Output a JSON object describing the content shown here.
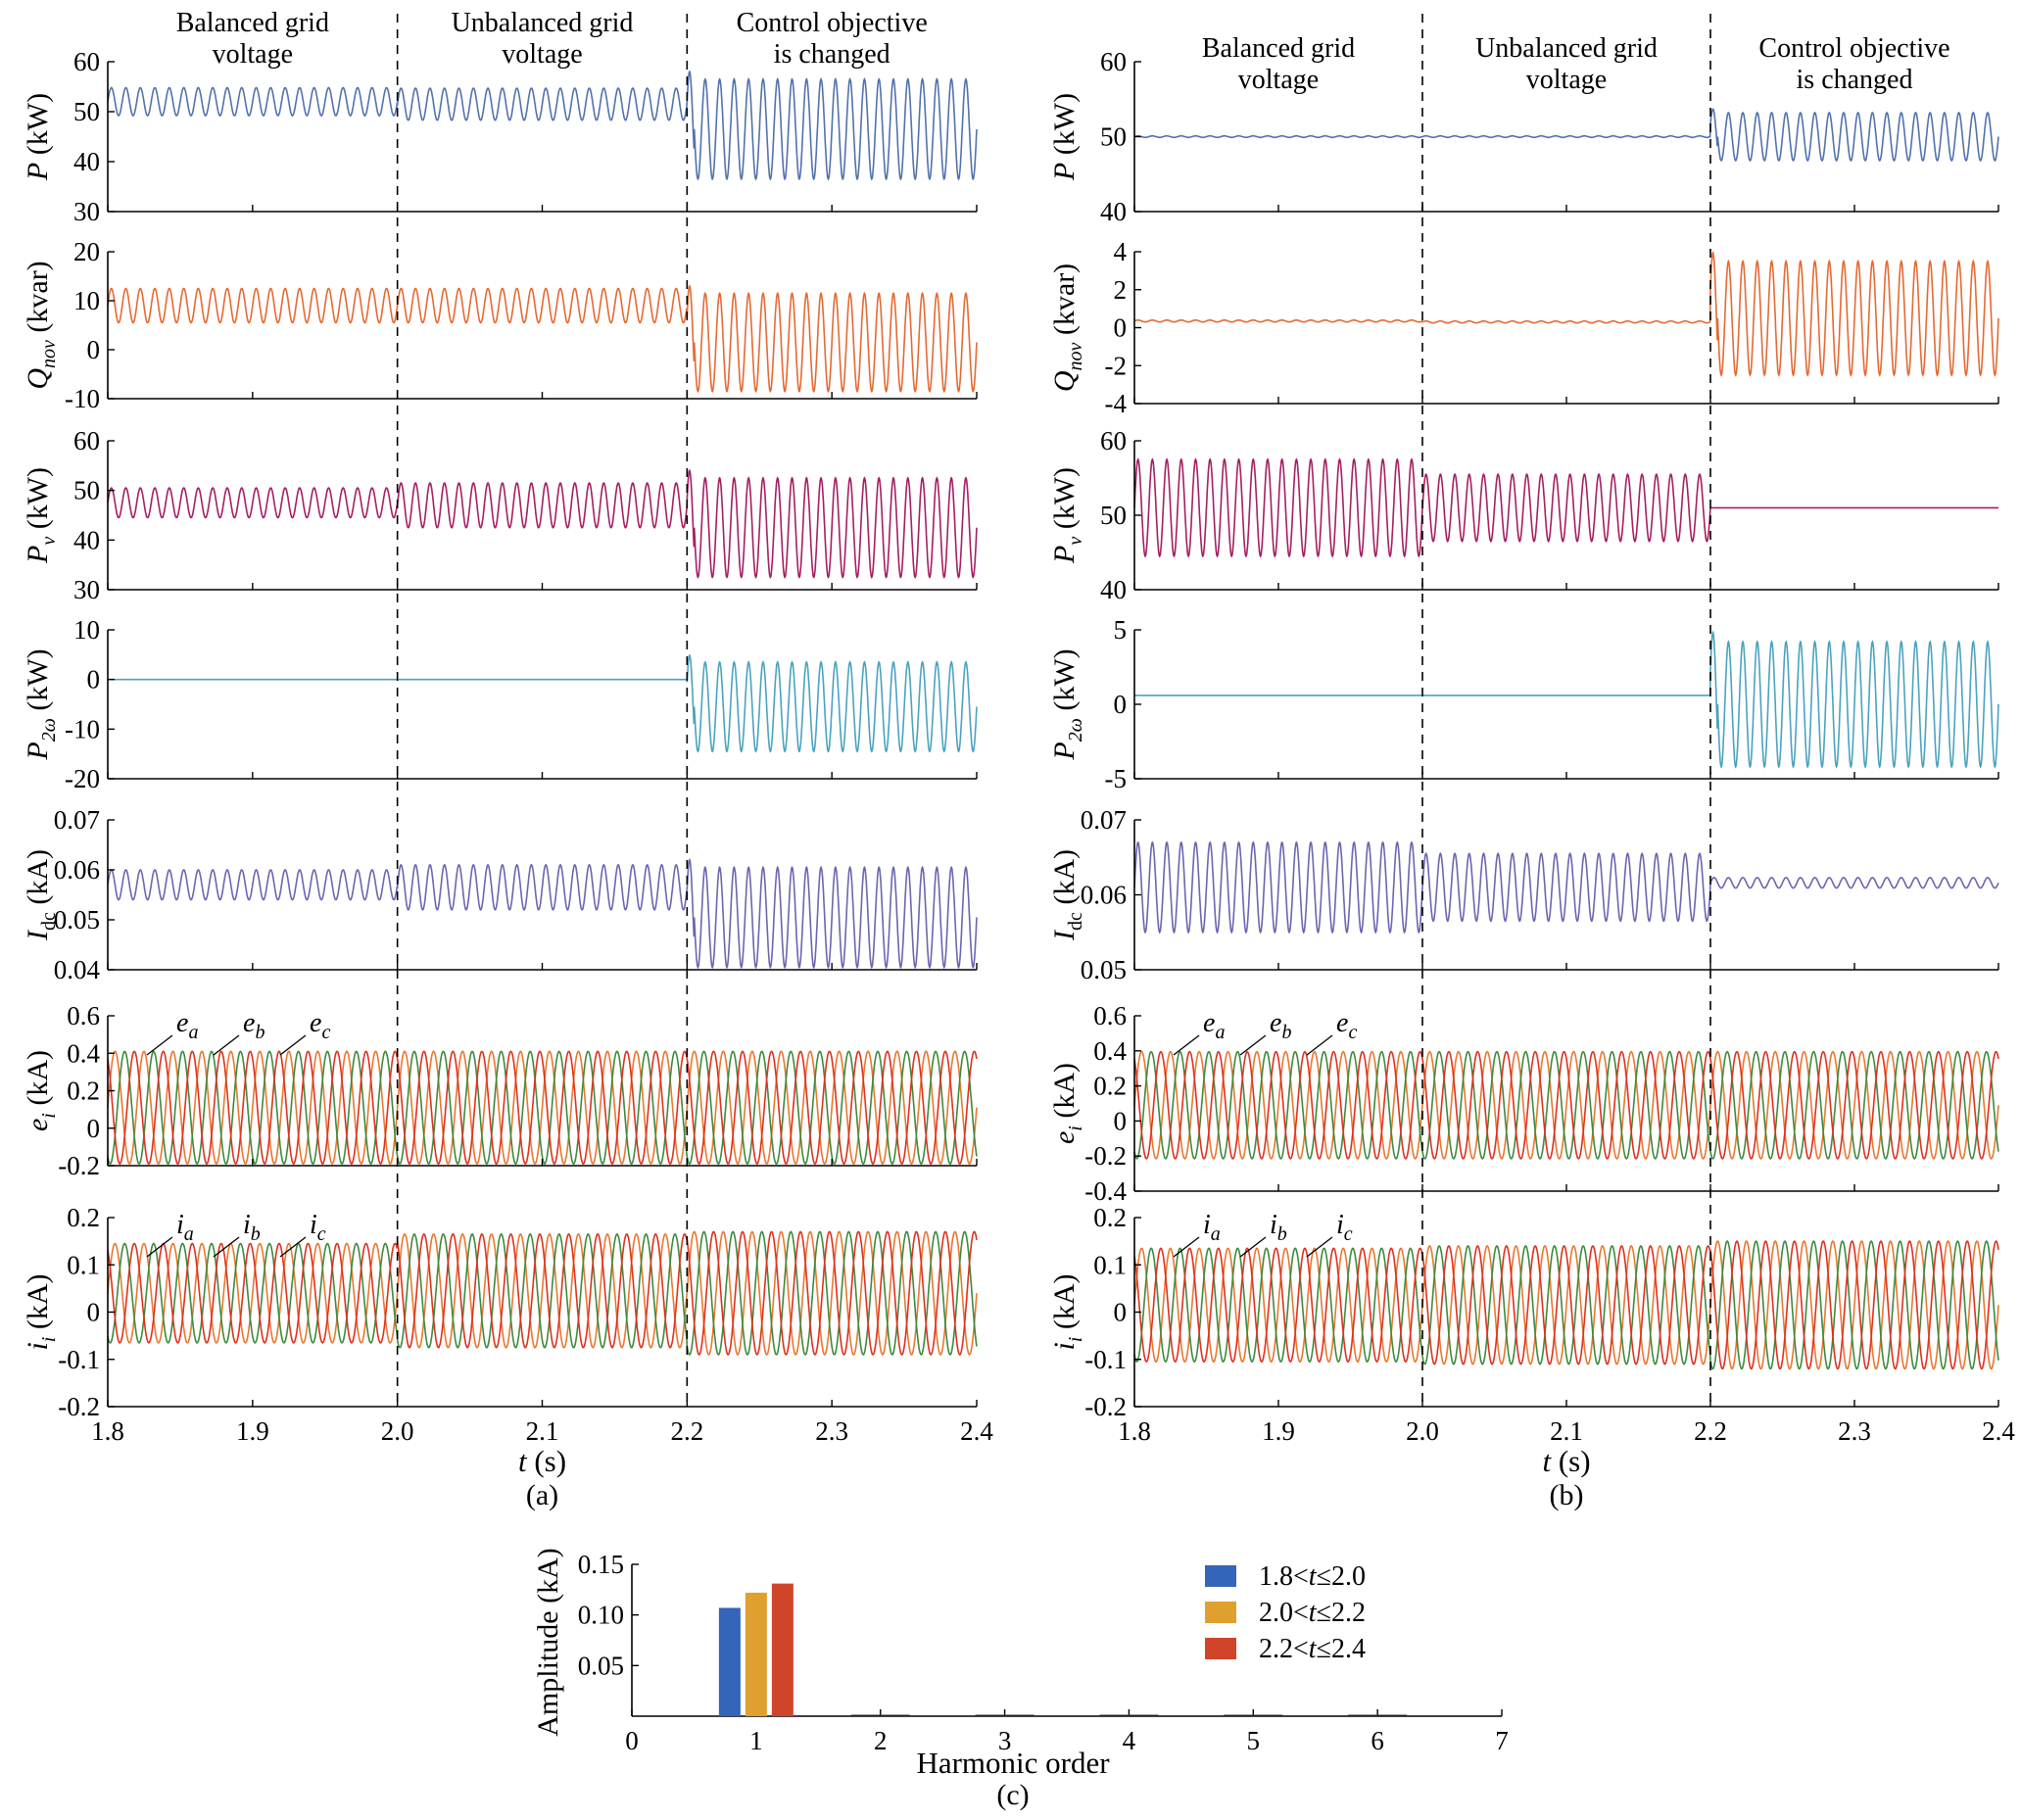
{
  "panels": [
    {
      "caption": "(a)",
      "annotations": [
        {
          "lines": [
            "Balanced grid",
            "voltage"
          ]
        },
        {
          "lines": [
            "Unbalanced grid",
            "voltage"
          ]
        },
        {
          "lines": [
            "Control objective",
            "is changed"
          ]
        }
      ],
      "xlabel": {
        "var": "t",
        "unit": " (s)"
      },
      "x_ticks": [
        "1.8",
        "1.9",
        "2.0",
        "2.1",
        "2.2",
        "2.3",
        "2.4"
      ],
      "phase_labels_e": [
        {
          "base": "e",
          "sub": "a"
        },
        {
          "base": "e",
          "sub": "b"
        },
        {
          "base": "e",
          "sub": "c"
        }
      ],
      "phase_labels_i": [
        {
          "base": "i",
          "sub": "a"
        },
        {
          "base": "i",
          "sub": "b"
        },
        {
          "base": "i",
          "sub": "c"
        }
      ],
      "rows": [
        {
          "ylabel": {
            "sym": "P",
            "sub": "",
            "unit": " (kW)"
          },
          "ylim": [
            30,
            60
          ],
          "ticks": [
            "30",
            "40",
            "50",
            "60"
          ]
        },
        {
          "ylabel": {
            "sym": "Q",
            "sub": "nov",
            "unit": " (kvar)"
          },
          "ylim": [
            -10,
            20
          ],
          "ticks": [
            "-10",
            "0",
            "10",
            "20"
          ]
        },
        {
          "ylabel": {
            "sym": "P",
            "sub": "v",
            "unit": " (kW)"
          },
          "ylim": [
            30,
            60
          ],
          "ticks": [
            "30",
            "40",
            "50",
            "60"
          ]
        },
        {
          "ylabel": {
            "sym": "P",
            "sub": "2ω",
            "unit": " (kW)"
          },
          "ylim": [
            -20,
            10
          ],
          "ticks": [
            "-20",
            "-10",
            "0",
            "10"
          ]
        },
        {
          "ylabel": {
            "sym": "I",
            "sub": "dc",
            "unit": " (kA)"
          },
          "ylim": [
            0.04,
            0.07
          ],
          "ticks": [
            "0.04",
            "0.05",
            "0.06",
            "0.07"
          ]
        },
        {
          "ylabel": {
            "sym": "e",
            "sub": "i",
            "unit": " (kA)"
          },
          "ylim": [
            -0.2,
            0.6
          ],
          "ticks": [
            "-0.2",
            "0",
            "0.2",
            "0.4",
            "0.6"
          ]
        },
        {
          "ylabel": {
            "sym": "i",
            "sub": "i",
            "unit": " (kA)"
          },
          "ylim": [
            -0.2,
            0.2
          ],
          "ticks": [
            "-0.2",
            "-0.1",
            "0",
            "0.1",
            "0.2"
          ]
        }
      ]
    },
    {
      "caption": "(b)",
      "annotations": [
        {
          "lines": [
            "Balanced grid",
            "voltage"
          ]
        },
        {
          "lines": [
            "Unbalanced grid",
            "voltage"
          ]
        },
        {
          "lines": [
            "Control objective",
            "is changed"
          ]
        }
      ],
      "xlabel": {
        "var": "t",
        "unit": " (s)"
      },
      "x_ticks": [
        "1.8",
        "1.9",
        "2.0",
        "2.1",
        "2.2",
        "2.3",
        "2.4"
      ],
      "phase_labels_e": [
        {
          "base": "e",
          "sub": "a"
        },
        {
          "base": "e",
          "sub": "b"
        },
        {
          "base": "e",
          "sub": "c"
        }
      ],
      "phase_labels_i": [
        {
          "base": "i",
          "sub": "a"
        },
        {
          "base": "i",
          "sub": "b"
        },
        {
          "base": "i",
          "sub": "c"
        }
      ],
      "rows": [
        {
          "ylabel": {
            "sym": "P",
            "sub": "",
            "unit": " (kW)"
          },
          "ylim": [
            40,
            60
          ],
          "ticks": [
            "40",
            "50",
            "60"
          ]
        },
        {
          "ylabel": {
            "sym": "Q",
            "sub": "nov",
            "unit": " (kvar)"
          },
          "ylim": [
            -4,
            4
          ],
          "ticks": [
            "-4",
            "-2",
            "0",
            "2",
            "4"
          ]
        },
        {
          "ylabel": {
            "sym": "P",
            "sub": "v",
            "unit": " (kW)"
          },
          "ylim": [
            40,
            60
          ],
          "ticks": [
            "40",
            "50",
            "60"
          ]
        },
        {
          "ylabel": {
            "sym": "P",
            "sub": "2ω",
            "unit": " (kW)"
          },
          "ylim": [
            -5,
            5
          ],
          "ticks": [
            "-5",
            "0",
            "5"
          ]
        },
        {
          "ylabel": {
            "sym": "I",
            "sub": "dc",
            "unit": " (kA)"
          },
          "ylim": [
            0.05,
            0.07
          ],
          "ticks": [
            "0.05",
            "0.06",
            "0.07"
          ]
        },
        {
          "ylabel": {
            "sym": "e",
            "sub": "i",
            "unit": " (kA)"
          },
          "ylim": [
            -0.4,
            0.6
          ],
          "ticks": [
            "-0.4",
            "-0.2",
            "0",
            "0.2",
            "0.4",
            "0.6"
          ]
        },
        {
          "ylabel": {
            "sym": "i",
            "sub": "i",
            "unit": " (kA)"
          },
          "ylim": [
            -0.2,
            0.2
          ],
          "ticks": [
            "-0.2",
            "-0.1",
            "0",
            "0.1",
            "0.2"
          ]
        }
      ]
    }
  ],
  "bar_panel": {
    "caption": "(c)",
    "xlabel": "Harmonic order",
    "ylabel": "Amplitude (kA)",
    "x_ticks": [
      "0",
      "1",
      "2",
      "3",
      "4",
      "5",
      "6",
      "7"
    ],
    "y_ticks": [
      "0.05",
      "0.10",
      "0.15"
    ],
    "legend": [
      {
        "pre": "1.8<",
        "var": "t",
        "post": "≤2.0",
        "color": "#3465b8"
      },
      {
        "pre": "2.0<",
        "var": "t",
        "post": "≤2.2",
        "color": "#e0a030"
      },
      {
        "pre": "2.2<",
        "var": "t",
        "post": "≤2.4",
        "color": "#d0452a"
      }
    ]
  },
  "colors": {
    "P": "#5272ac",
    "Qnov": "#e46a33",
    "Pv": "#a51f63",
    "P2w": "#4aa3bf",
    "Idc": "#6a66b0",
    "phase_a": "#e8782f",
    "phase_b": "#3d8a3d",
    "phase_c": "#e0301e",
    "axis": "#000000"
  },
  "chart_data": [
    {
      "type": "line",
      "title": "(a)",
      "x_unit": "s",
      "xlim": [
        1.8,
        2.4
      ],
      "event_times": [
        2.0,
        2.2
      ],
      "fundamental_hz": 50,
      "series_note_values": "each series given as oscillation envelope per interval: [1.8–2.0], [2.0–2.2], [2.2–2.4] with mean and peak-to-peak half amplitude",
      "series": [
        {
          "name": "P (kW)",
          "ylim": [
            30,
            60
          ],
          "freq_hz": 100,
          "intervals": [
            {
              "mean": 52,
              "amp": 2.8
            },
            {
              "mean": 51.5,
              "amp": 3.2
            },
            {
              "mean": 46.5,
              "amp": 10
            }
          ]
        },
        {
          "name": "Qnov (kvar)",
          "ylim": [
            -10,
            20
          ],
          "freq_hz": 100,
          "intervals": [
            {
              "mean": 9,
              "amp": 3.5
            },
            {
              "mean": 9,
              "amp": 3.5
            },
            {
              "mean": 1.5,
              "amp": 10
            }
          ]
        },
        {
          "name": "Pv (kW)",
          "ylim": [
            30,
            60
          ],
          "freq_hz": 100,
          "intervals": [
            {
              "mean": 47.5,
              "amp": 3
            },
            {
              "mean": 47,
              "amp": 4.5
            },
            {
              "mean": 42.5,
              "amp": 10
            }
          ]
        },
        {
          "name": "P2ω (kW)",
          "ylim": [
            -20,
            10
          ],
          "freq_hz": 100,
          "intervals": [
            {
              "mean": 0,
              "amp": 0
            },
            {
              "mean": 0,
              "amp": 0
            },
            {
              "mean": -5.5,
              "amp": 9
            }
          ]
        },
        {
          "name": "Idc (kA)",
          "ylim": [
            0.04,
            0.07
          ],
          "freq_hz": 100,
          "intervals": [
            {
              "mean": 0.057,
              "amp": 0.003
            },
            {
              "mean": 0.0565,
              "amp": 0.0045
            },
            {
              "mean": 0.0505,
              "amp": 0.01
            }
          ]
        },
        {
          "name": "e_i (kA)",
          "ylim": [
            -0.2,
            0.6
          ],
          "freq_hz": 50,
          "phases": [
            "a",
            "b",
            "c"
          ],
          "intervals": [
            {
              "mean": 0.11,
              "amp": 0.3
            },
            {
              "mean": 0.11,
              "amp": 0.3
            },
            {
              "mean": 0.11,
              "amp": 0.3
            }
          ]
        },
        {
          "name": "i_i (kA)",
          "ylim": [
            -0.2,
            0.2
          ],
          "freq_hz": 50,
          "phases": [
            "a",
            "b",
            "c"
          ],
          "intervals": [
            {
              "mean": 0.04,
              "amp": 0.105
            },
            {
              "mean": 0.045,
              "amp": 0.12
            },
            {
              "mean": 0.04,
              "amp": 0.13
            }
          ]
        }
      ]
    },
    {
      "type": "line",
      "title": "(b)",
      "x_unit": "s",
      "xlim": [
        1.8,
        2.4
      ],
      "event_times": [
        2.0,
        2.2
      ],
      "fundamental_hz": 50,
      "series": [
        {
          "name": "P (kW)",
          "ylim": [
            40,
            60
          ],
          "freq_hz": 100,
          "intervals": [
            {
              "mean": 50,
              "amp": 0.1
            },
            {
              "mean": 50,
              "amp": 0.1
            },
            {
              "mean": 50,
              "amp": 3.2
            }
          ]
        },
        {
          "name": "Qnov (kvar)",
          "ylim": [
            -4,
            4
          ],
          "freq_hz": 100,
          "intervals": [
            {
              "mean": 0.35,
              "amp": 0.05
            },
            {
              "mean": 0.3,
              "amp": 0.05
            },
            {
              "mean": 0.5,
              "amp": 3
            }
          ]
        },
        {
          "name": "Pv (kW)",
          "ylim": [
            40,
            60
          ],
          "freq_hz": 100,
          "intervals": [
            {
              "mean": 51,
              "amp": 6.5
            },
            {
              "mean": 51,
              "amp": 4.5
            },
            {
              "mean": 51,
              "amp": 0
            }
          ]
        },
        {
          "name": "P2ω (kW)",
          "ylim": [
            -5,
            5
          ],
          "freq_hz": 100,
          "intervals": [
            {
              "mean": 0.6,
              "amp": 0
            },
            {
              "mean": 0.6,
              "amp": 0
            },
            {
              "mean": 0,
              "amp": 4.2
            }
          ]
        },
        {
          "name": "Idc (kA)",
          "ylim": [
            0.05,
            0.07
          ],
          "freq_hz": 100,
          "intervals": [
            {
              "mean": 0.061,
              "amp": 0.006
            },
            {
              "mean": 0.061,
              "amp": 0.0045
            },
            {
              "mean": 0.0616,
              "amp": 0.0007
            }
          ]
        },
        {
          "name": "e_i (kA)",
          "ylim": [
            -0.4,
            0.6
          ],
          "freq_hz": 50,
          "phases": [
            "a",
            "b",
            "c"
          ],
          "intervals": [
            {
              "mean": 0.09,
              "amp": 0.305
            },
            {
              "mean": 0.09,
              "amp": 0.305
            },
            {
              "mean": 0.09,
              "amp": 0.305
            }
          ]
        },
        {
          "name": "i_i (kA)",
          "ylim": [
            -0.2,
            0.2
          ],
          "freq_hz": 50,
          "phases": [
            "a",
            "b",
            "c"
          ],
          "intervals": [
            {
              "mean": 0.015,
              "amp": 0.12
            },
            {
              "mean": 0.015,
              "amp": 0.125
            },
            {
              "mean": 0.015,
              "amp": 0.135
            }
          ]
        }
      ]
    },
    {
      "type": "bar",
      "title": "(c)",
      "xlabel": "Harmonic order",
      "ylabel": "Amplitude (kA)",
      "xlim": [
        0,
        7
      ],
      "ylim": [
        0,
        0.15
      ],
      "categories": [
        1
      ],
      "series": [
        {
          "name": "1.8<t≤2.0",
          "values": [
            0.107
          ]
        },
        {
          "name": "2.0<t≤2.2",
          "values": [
            0.122
          ]
        },
        {
          "name": "2.2<t≤2.4",
          "values": [
            0.131
          ]
        }
      ]
    }
  ]
}
